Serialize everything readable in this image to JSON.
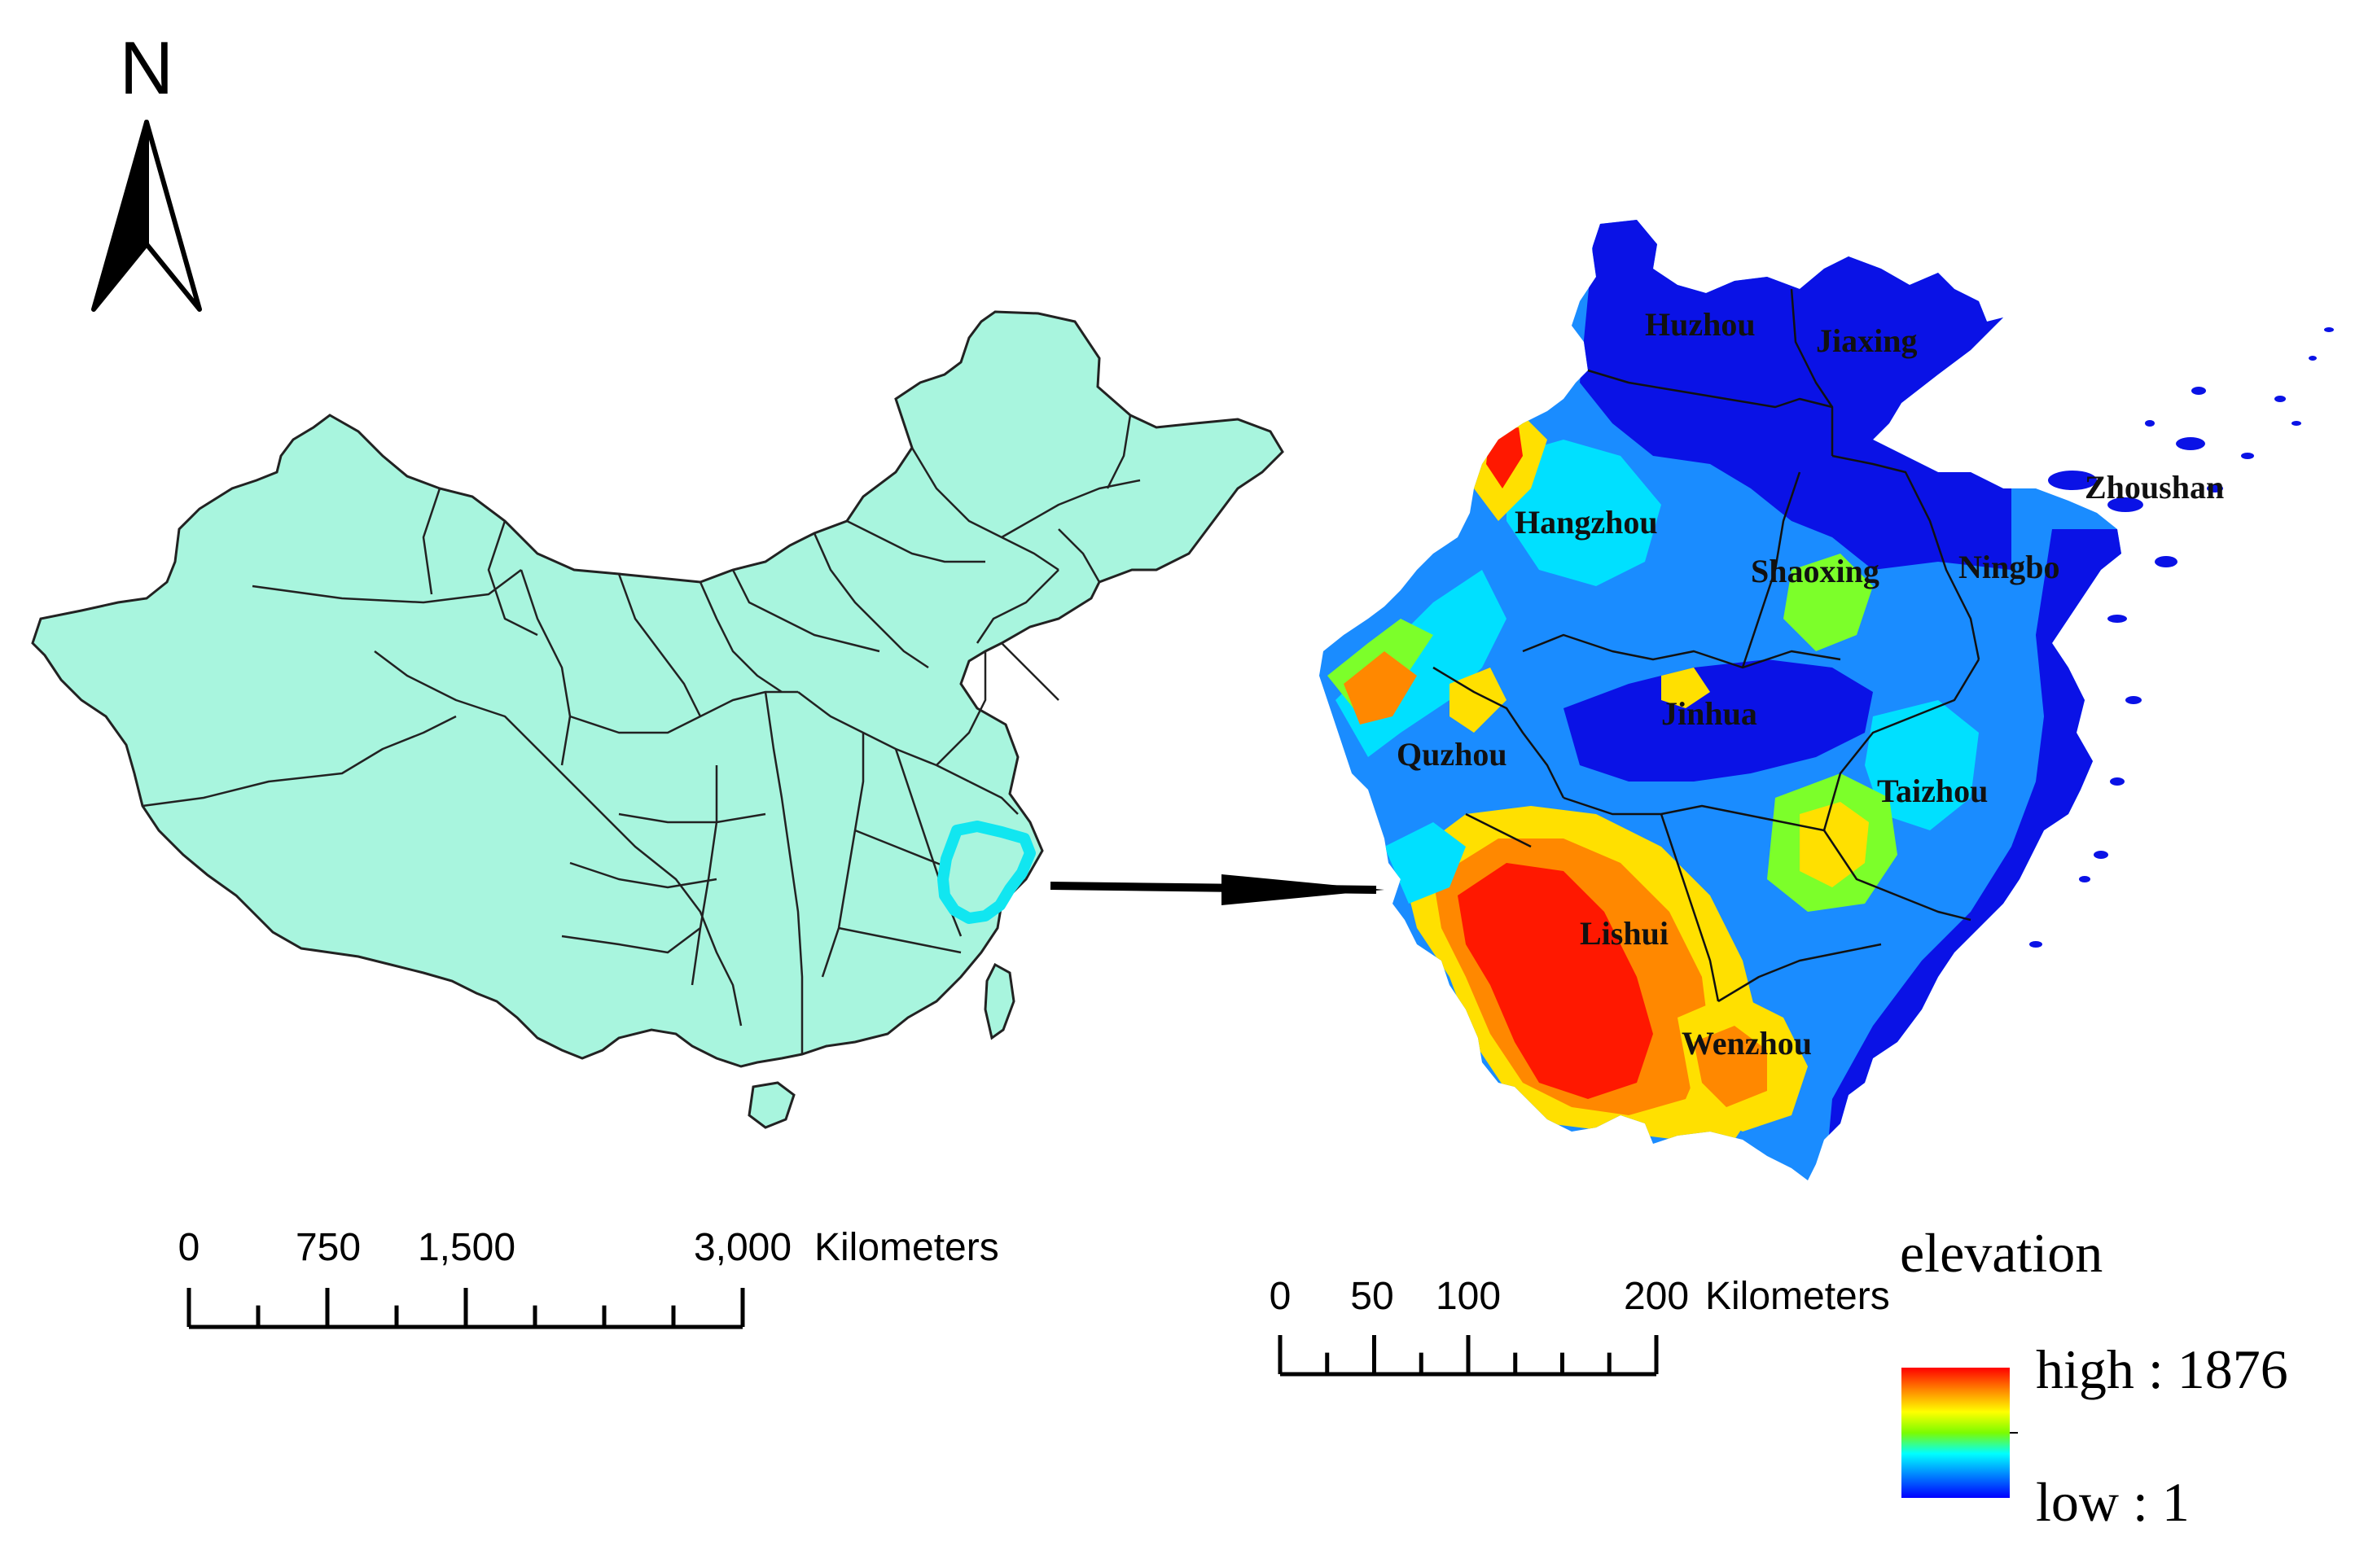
{
  "north_arrow": {
    "label": "N"
  },
  "china_scale_bar": {
    "tick_labels": [
      "0",
      "750",
      "1,500",
      "3,000"
    ],
    "unit": "Kilometers",
    "tick_values": [
      0,
      750,
      1500,
      3000
    ],
    "max_value": 3000
  },
  "zhejiang_scale_bar": {
    "tick_labels": [
      "0",
      "50",
      "100",
      "200"
    ],
    "unit": "Kilometers",
    "tick_values": [
      0,
      50,
      100,
      200
    ],
    "max_value": 200
  },
  "cities": [
    {
      "id": "huzhou",
      "name": "Huzhou"
    },
    {
      "id": "jiaxing",
      "name": "Jiaxing"
    },
    {
      "id": "zhoushan",
      "name": "Zhoushan"
    },
    {
      "id": "hangzhou",
      "name": "Hangzhou"
    },
    {
      "id": "shaoxing",
      "name": "Shaoxing"
    },
    {
      "id": "ningbo",
      "name": "Ningbo"
    },
    {
      "id": "jinhua",
      "name": "Jinhua"
    },
    {
      "id": "quzhou",
      "name": "Quzhou"
    },
    {
      "id": "taizhou",
      "name": "Taizhou"
    },
    {
      "id": "lishui",
      "name": "Lishui"
    },
    {
      "id": "wenzhou",
      "name": "Wenzhou"
    }
  ],
  "legend": {
    "title": "elevation",
    "high_label": "high : 1876",
    "low_label": "low : 1",
    "high_value": 1876,
    "low_value": 1,
    "ramp_colors": [
      "#ff0000",
      "#ff8c00",
      "#ffff00",
      "#7cfc00",
      "#00ffff",
      "#0080ff",
      "#0000ff"
    ]
  },
  "colors": {
    "china_fill": "#a8f5de",
    "boundary": "#222222",
    "highlight": "#11e6f0",
    "low": "#0a12e6",
    "mid_low": "#1a8cff",
    "mid": "#00e0ff",
    "mid_high": "#7cff2a",
    "high1": "#ffe000",
    "high2": "#ff8800",
    "high3": "#ff1800"
  }
}
